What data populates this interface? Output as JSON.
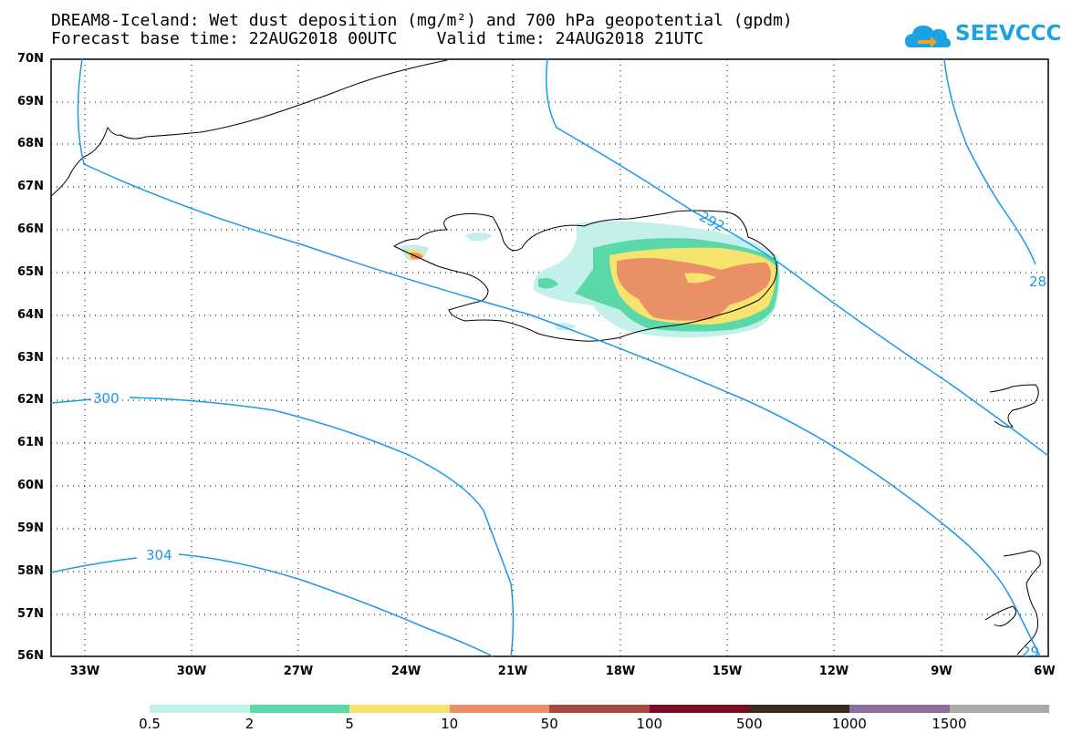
{
  "title": {
    "line1": "DREAM8-Iceland: Wet dust deposition (mg/m²) and 700 hPa geopotential (gpdm)",
    "line2": "Forecast base time: 22AUG2018 00UTC    Valid time: 24AUG2018 21UTC"
  },
  "logo": {
    "text": "SEEVCCC",
    "icon": "cloud-logo-icon",
    "color": "#1aa3e0"
  },
  "map": {
    "lat_labels": [
      "70N",
      "69N",
      "68N",
      "67N",
      "66N",
      "65N",
      "64N",
      "63N",
      "62N",
      "61N",
      "60N",
      "59N",
      "58N",
      "57N",
      "56N"
    ],
    "lon_labels": [
      "33W",
      "30W",
      "27W",
      "24W",
      "21W",
      "18W",
      "15W",
      "12W",
      "9W",
      "6W"
    ],
    "contour_color": "#1a9ae8",
    "contour_labels": [
      "300",
      "304",
      "292",
      "28",
      "29"
    ]
  },
  "legend": {
    "colors": [
      "#c4f0ec",
      "#5ad8a8",
      "#f7e46e",
      "#ea9066",
      "#a64a40",
      "#7a0c26",
      "#3a2a1e",
      "#8a6ea0",
      "#aaaaaa"
    ],
    "labels": [
      "0.5",
      "2",
      "5",
      "10",
      "50",
      "100",
      "500",
      "1000",
      "1500"
    ]
  },
  "chart_data": {
    "type": "map",
    "variable": "Wet dust deposition (mg/m²)",
    "overlay": "700 hPa geopotential (gpdm)",
    "lat_range": [
      56,
      70
    ],
    "lon_range": [
      -34,
      -6
    ],
    "contour_values_labeled": [
      300,
      304,
      292
    ],
    "color_levels": [
      0.5,
      2,
      5,
      10,
      50,
      100,
      500,
      1000,
      1500
    ]
  }
}
